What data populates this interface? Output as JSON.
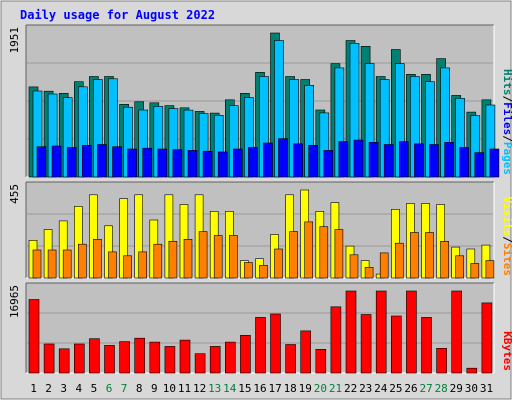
{
  "chart_data": {
    "type": "bar",
    "title": "Daily usage for August 2022",
    "categories": [
      "1",
      "2",
      "3",
      "4",
      "5",
      "6",
      "7",
      "8",
      "9",
      "10",
      "11",
      "12",
      "13",
      "14",
      "15",
      "16",
      "17",
      "18",
      "19",
      "20",
      "21",
      "22",
      "23",
      "24",
      "25",
      "26",
      "27",
      "28",
      "29",
      "30",
      "31"
    ],
    "weekend_days": [
      "6",
      "7",
      "13",
      "14",
      "20",
      "21",
      "27",
      "28"
    ],
    "colors": {
      "hits": "#008070",
      "files": "#00c0ff",
      "pages": "#0000ff",
      "visits": "#ffff00",
      "sites": "#ff8000",
      "kbytes": "#ff0000",
      "title": "#0000ff",
      "weekend_label": "#008040",
      "weekday_label": "#000000",
      "plot_bg": "#c0c0c0",
      "frame_bg": "#d8d8d8"
    },
    "panels": [
      {
        "name": "pages-files-hits",
        "ymax_label": "1951",
        "ymax": 1951,
        "legend": [
          {
            "label": "Pages",
            "color": "#00c0ff"
          },
          {
            "label": "Files",
            "color": "#0000ff"
          },
          {
            "label": "Hits",
            "color": "#008070"
          }
        ],
        "series": [
          {
            "name": "Hits",
            "color": "#008070",
            "values": [
              1221,
              1163,
              1134,
              1291,
              1361,
              1361,
              985,
              1019,
              1005,
              967,
              937,
              889,
              866,
              1046,
              1134,
              1419,
              1951,
              1361,
              1321,
              908,
              1537,
              1849,
              1771,
              1361,
              1727,
              1391,
              1391,
              1604,
              1105,
              879,
              1046
            ]
          },
          {
            "name": "Files",
            "color": "#00c0ff",
            "values": [
              1165,
              1125,
              1076,
              1222,
              1321,
              1331,
              946,
              908,
              957,
              927,
              907,
              859,
              836,
              966,
              1076,
              1361,
              1849,
              1321,
              1241,
              869,
              1478,
              1811,
              1537,
              1321,
              1537,
              1361,
              1291,
              1478,
              1065,
              830,
              976
            ]
          },
          {
            "name": "Pages",
            "color": "#0000ff",
            "values": [
              410,
              420,
              400,
              430,
              440,
              410,
              380,
              390,
              380,
              370,
              360,
              350,
              340,
              380,
              400,
              460,
              520,
              450,
              430,
              360,
              480,
              500,
              470,
              440,
              480,
              450,
              440,
              470,
              400,
              330,
              380
            ]
          }
        ]
      },
      {
        "name": "sites-visits",
        "ymax_label": "455",
        "ymax": 455,
        "legend": [
          {
            "label": "Sites",
            "color": "#ff8000"
          },
          {
            "label": "Visits",
            "color": "#ffff00"
          }
        ],
        "series": [
          {
            "name": "Visits",
            "color": "#ffff00",
            "values": [
              195,
              250,
              295,
              370,
              430,
              270,
              410,
              430,
              300,
              430,
              380,
              430,
              345,
              345,
              90,
              100,
              225,
              430,
              455,
              345,
              390,
              165,
              90,
              20,
              355,
              385,
              385,
              380,
              160,
              150,
              170
            ]
          },
          {
            "name": "Sites",
            "color": "#ff8000",
            "values": [
              145,
              145,
              145,
              175,
              200,
              135,
              115,
              135,
              175,
              190,
              200,
              240,
              220,
              220,
              80,
              65,
              150,
              240,
              290,
              265,
              250,
              120,
              55,
              130,
              180,
              235,
              235,
              190,
              115,
              75,
              90
            ]
          }
        ]
      },
      {
        "name": "kbytes",
        "ymax_label": "16965",
        "ymax": 16965,
        "legend": [
          {
            "label": "KBytes",
            "color": "#ff0000"
          }
        ],
        "series": [
          {
            "name": "KBytes",
            "color": "#ff0000",
            "values": [
              15200,
              6000,
              5000,
              6000,
              7100,
              5700,
              6500,
              7200,
              6400,
              5500,
              6800,
              4000,
              5500,
              6400,
              7800,
              11500,
              12200,
              5900,
              8700,
              4900,
              13700,
              16965,
              12100,
              16965,
              11800,
              16965,
              11500,
              5100,
              16965,
              1000,
              14500
            ]
          }
        ]
      }
    ]
  }
}
